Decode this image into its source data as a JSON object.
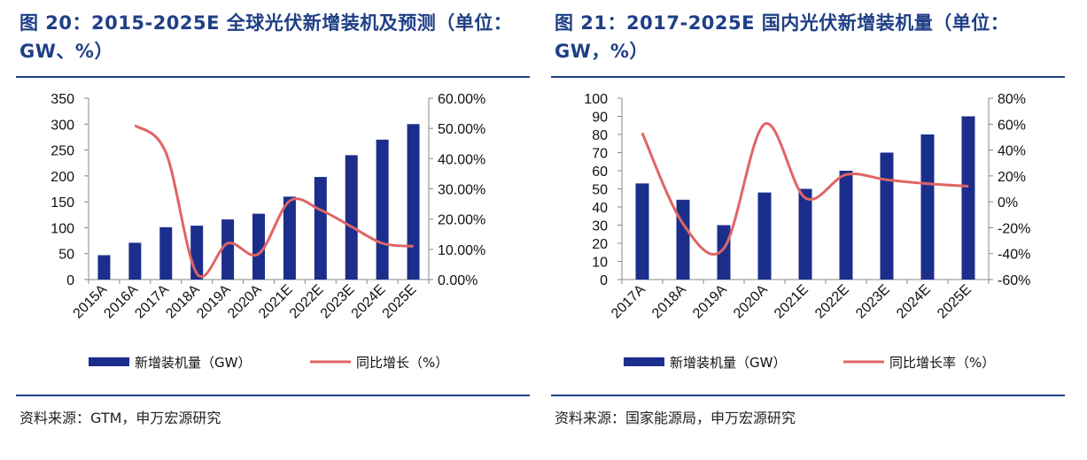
{
  "panels": [
    {
      "title": "图 20：2015-2025E 全球光伏新增装机及预测（单位：GW、%）",
      "source": "资料来源：GTM，申万宏源研究",
      "legend": {
        "bar_label": "新增装机量（GW）",
        "line_label": "同比增长（%）"
      },
      "colors": {
        "bar": "#1c2e8c",
        "line": "#e06464"
      }
    },
    {
      "title": "图 21：2017-2025E 国内光伏新增装机量（单位：GW，%）",
      "source": "资料来源：国家能源局，申万宏源研究",
      "legend": {
        "bar_label": "新增装机量（GW）",
        "line_label": "同比增长率（%）"
      },
      "colors": {
        "bar": "#1c2e8c",
        "line": "#e06464"
      }
    }
  ],
  "chart_data": [
    {
      "type": "bar",
      "categories": [
        "2015A",
        "2016A",
        "2017A",
        "2018A",
        "2019A",
        "2020A",
        "2021E",
        "2022E",
        "2023E",
        "2024E",
        "2025E"
      ],
      "series": [
        {
          "name": "新增装机量（GW）",
          "type": "bar",
          "axis": "left",
          "values": [
            47,
            71,
            101,
            104,
            116,
            127,
            160,
            198,
            240,
            270,
            300
          ]
        },
        {
          "name": "同比增长（%）",
          "type": "line",
          "axis": "right",
          "values": [
            null,
            51.0,
            42.0,
            2.0,
            12.0,
            8.5,
            26.0,
            23.0,
            17.5,
            12.0,
            11.0
          ]
        }
      ],
      "ylim_left": [
        0,
        350
      ],
      "yticks_left": [
        "0",
        "50",
        "100",
        "150",
        "200",
        "250",
        "300",
        "350"
      ],
      "ylim_right": [
        0,
        60
      ],
      "yticks_right": [
        "0.00%",
        "10.00%",
        "20.00%",
        "30.00%",
        "40.00%",
        "50.00%",
        "60.00%"
      ],
      "legend_position": "bottom"
    },
    {
      "type": "bar",
      "categories": [
        "2017A",
        "2018A",
        "2019A",
        "2020A",
        "2021E",
        "2022E",
        "2023E",
        "2024E",
        "2025E"
      ],
      "series": [
        {
          "name": "新增装机量（GW）",
          "type": "bar",
          "axis": "left",
          "values": [
            53,
            44,
            30,
            48,
            50,
            60,
            70,
            80,
            90
          ]
        },
        {
          "name": "同比增长率（%）",
          "type": "line",
          "axis": "right",
          "values": [
            53,
            -17,
            -36,
            60,
            3,
            21,
            17,
            14,
            12
          ]
        }
      ],
      "ylim_left": [
        0,
        100
      ],
      "yticks_left": [
        "0",
        "10",
        "20",
        "30",
        "40",
        "50",
        "60",
        "70",
        "80",
        "90",
        "100"
      ],
      "ylim_right": [
        -60,
        80
      ],
      "yticks_right": [
        "-60%",
        "-40%",
        "-20%",
        "0%",
        "20%",
        "40%",
        "60%",
        "80%"
      ],
      "legend_position": "bottom"
    }
  ]
}
